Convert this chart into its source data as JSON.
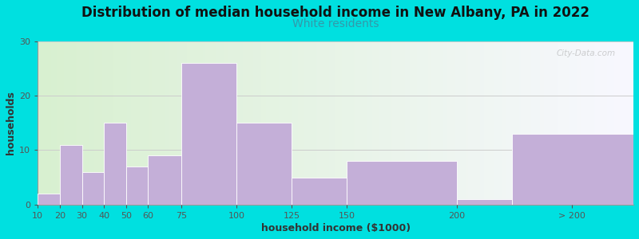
{
  "title": "Distribution of median household income in New Albany, PA in 2022",
  "subtitle": "White residents",
  "xlabel": "household income ($1000)",
  "ylabel": "households",
  "background_outer": "#00e0e0",
  "bar_color": "#c4afd8",
  "bar_edge_color": "#ffffff",
  "title_fontsize": 12,
  "subtitle_fontsize": 10,
  "subtitle_color": "#3399aa",
  "axis_label_fontsize": 9,
  "tick_fontsize": 8,
  "positions": [
    10,
    20,
    30,
    40,
    50,
    60,
    75,
    100,
    125,
    150,
    200,
    225
  ],
  "widths": [
    10,
    10,
    10,
    10,
    10,
    15,
    25,
    25,
    25,
    50,
    25,
    55
  ],
  "values": [
    2,
    11,
    6,
    15,
    7,
    9,
    26,
    15,
    5,
    8,
    1,
    13
  ],
  "xtick_locs": [
    10,
    20,
    30,
    40,
    50,
    60,
    75,
    100,
    125,
    150,
    200,
    252
  ],
  "xtick_labels": [
    "10",
    "20",
    "30",
    "40",
    "50",
    "60",
    "75",
    "100",
    "125",
    "150",
    "200",
    "> 200"
  ],
  "yticks": [
    0,
    10,
    20,
    30
  ],
  "ylim": [
    0,
    30
  ],
  "xlim": [
    10,
    280
  ],
  "watermark": "City-Data.com",
  "bg_left_color": "#d8f0d0",
  "bg_right_color": "#f8f8ff"
}
